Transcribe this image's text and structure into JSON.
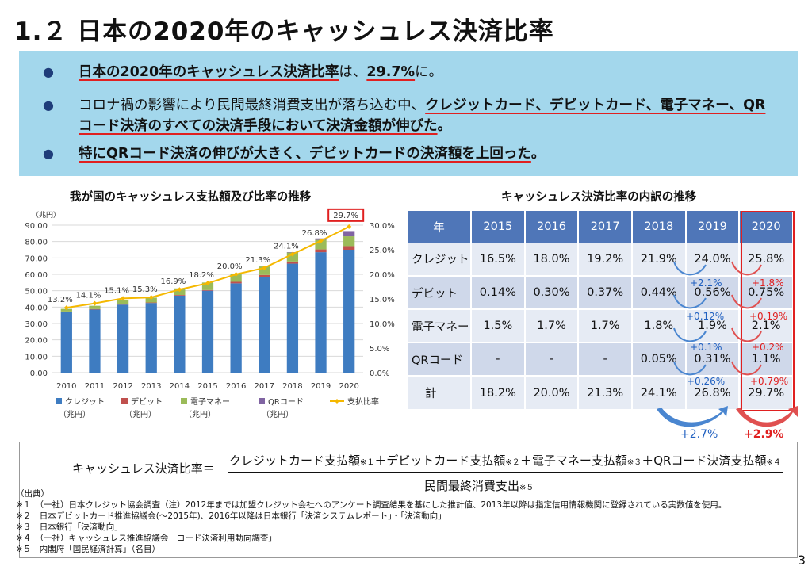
{
  "title": "1.２ 日本の2020年のキャッシュレス決済比率",
  "bullets": [
    {
      "underlined": "日本の2020年のキャッシュレス決済比率",
      "mid": "は、",
      "underlined2": "29.7%",
      "tail": "に。"
    },
    {
      "plain": "コロナ禍の影響により民間最終消費支出が落ち込む中、",
      "underlined_line1": "クレジットカード、デビットカード、電子マネー、QR",
      "underlined_line2": "コード決済のすべての決済手段において決済金額が伸びた",
      "tail": "。"
    },
    {
      "underlined": "特にQRコード決済の伸びが大きく、デビットカードの決済額を上回った",
      "tail": "。"
    }
  ],
  "left_chart_title": "我が国のキャッシュレス支払額及び比率の推移",
  "right_table_title": "キャッシュレス決済比率の内訳の推移",
  "chart_data": [
    {
      "type": "bar",
      "stacked": true,
      "title": "我が国のキャッシュレス支払額及び比率の推移",
      "ylabel_left": "（兆円）",
      "categories": [
        "2010",
        "2011",
        "2012",
        "2013",
        "2014",
        "2015",
        "2016",
        "2017",
        "2018",
        "2019",
        "2020"
      ],
      "series": [
        {
          "name": "クレジット（兆円）",
          "legend_line1": "クレジット",
          "legend_line2": "（兆円）",
          "color": "#3e7cc1",
          "values": [
            37.0,
            38.5,
            41.5,
            42.5,
            47.0,
            50.0,
            54.5,
            58.5,
            66.5,
            73.5,
            75.0
          ]
        },
        {
          "name": "デビット（兆円）",
          "legend_line1": "デビット",
          "legend_line2": "（兆円）",
          "color": "#c0504d",
          "values": [
            0.3,
            0.3,
            0.3,
            0.3,
            0.4,
            0.4,
            0.9,
            1.1,
            1.3,
            1.7,
            2.2
          ]
        },
        {
          "name": "電子マネー（兆円）",
          "legend_line1": "電子マネー",
          "legend_line2": "（兆円）",
          "color": "#9bbb59",
          "values": [
            1.6,
            2.0,
            2.4,
            3.0,
            4.0,
            4.6,
            5.1,
            5.2,
            5.5,
            5.8,
            6.0
          ]
        },
        {
          "name": "QRコード（兆円）",
          "legend_line1": "QRコード",
          "legend_line2": "（兆円）",
          "color": "#8064a2",
          "values": [
            0,
            0,
            0,
            0,
            0,
            0,
            0,
            0,
            0.2,
            0.9,
            3.2
          ]
        }
      ],
      "line_series": {
        "name": "支払比率",
        "color": "#f5b800",
        "values": [
          13.2,
          14.1,
          15.1,
          15.3,
          16.9,
          18.2,
          20.0,
          21.3,
          24.1,
          26.8,
          29.7
        ]
      },
      "line_labels": [
        "13.2%",
        "14.1%",
        "15.1%",
        "15.3%",
        "16.9%",
        "18.2%",
        "20.0%",
        "21.3%",
        "24.1%",
        "26.8%",
        "29.7%"
      ],
      "ylim_left": [
        0,
        90
      ],
      "ylim_right": [
        0,
        30
      ],
      "y_ticks_left": [
        "0.00",
        "10.00",
        "20.00",
        "30.00",
        "40.00",
        "50.00",
        "60.00",
        "70.00",
        "80.00",
        "90.00"
      ],
      "y_ticks_right": [
        "0.0%",
        "5.0%",
        "10.0%",
        "15.0%",
        "20.0%",
        "25.0%",
        "30.0%"
      ],
      "legend_position": "bottom",
      "highlight_label": "29.7%"
    },
    {
      "type": "table",
      "title": "キャッシュレス決済比率の内訳の推移",
      "columns": [
        "年",
        "2015",
        "2016",
        "2017",
        "2018",
        "2019",
        "2020"
      ],
      "rows": [
        [
          "クレジット",
          "16.5%",
          "18.0%",
          "19.2%",
          "21.9%",
          "24.0%",
          "25.8%"
        ],
        [
          "デビット",
          "0.14%",
          "0.30%",
          "0.37%",
          "0.44%",
          "0.56%",
          "0.75%"
        ],
        [
          "電子マネー",
          "1.5%",
          "1.7%",
          "1.7%",
          "1.8%",
          "1.9%",
          "2.1%"
        ],
        [
          "QRコード",
          "-",
          "-",
          "-",
          "0.05%",
          "0.31%",
          "1.1%"
        ],
        [
          "計",
          "18.2%",
          "20.0%",
          "21.3%",
          "24.1%",
          "26.8%",
          "29.7%"
        ]
      ],
      "deltas_2019": [
        "+2.1%",
        "+0.12%",
        "+0.1%",
        "+0.26%",
        "+2.7%"
      ],
      "deltas_2020": [
        "+1.8%",
        "+0.19%",
        "+0.2%",
        "+0.79%",
        "+2.9%"
      ]
    }
  ],
  "formula": {
    "lhs": "キャッシュレス決済比率＝",
    "numerator_parts": [
      "クレジットカード支払額",
      "※１",
      "＋デビットカード支払額",
      "※２",
      "＋電子マネー支払額",
      "※３",
      "＋QRコード決済支払額",
      "※４"
    ],
    "denominator": "民間最終消費支出",
    "denominator_sup": "※５"
  },
  "notes": [
    "（出典）",
    "※１　（一社）日本クレジット協会調査（注）2012年までは加盟クレジット会社へのアンケート調査結果を基にした推計値、2013年以降は指定信用情報機関に登録されている実数値を使用。",
    "※２　日本デビットカード推進協議会(～2015年)、2016年以降は日本銀行「決済システムレポート」・「決済動向」",
    "※３　日本銀行「決済動向」",
    "※４　（一社）キャッシュレス推進協議会「コード決済利用動向調査」",
    "※５　内閣府「国民経済計算」（名目）"
  ],
  "page_number": "3"
}
